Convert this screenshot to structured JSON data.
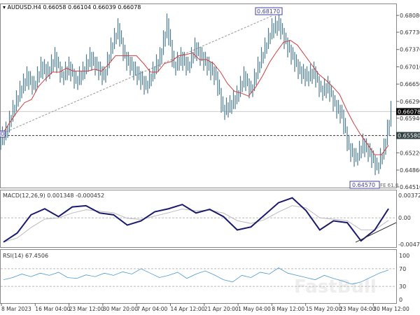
{
  "header": {
    "symbol": "AUDUSD.H4",
    "ohlc": "0.66058 0.66104 0.66039 0.66078"
  },
  "chart_data": [
    {
      "type": "candlestick",
      "title": "AUDUSD.H4 0.66058 0.66104 0.66039 0.66078",
      "ylim": [
        0.6451,
        0.6808
      ],
      "y_ticks": [
        "0.68080",
        "0.67730",
        "0.67370",
        "0.67010",
        "0.66650",
        "0.66290",
        "0.65940",
        "0.65220",
        "0.64860",
        "0.64510"
      ],
      "y_tick_values": [
        0.6808,
        0.6773,
        0.6737,
        0.6701,
        0.6665,
        0.6629,
        0.6594,
        0.6522,
        0.6486,
        0.6451
      ],
      "current_price": "0.66078",
      "current_price_value": 0.66078,
      "level_line": "0.65580",
      "level_value": 0.6558,
      "annotations": {
        "high": "0.68170",
        "low": "0.64570",
        "fib": "FE 61.8",
        "left": "0"
      },
      "closes": [
        0.6565,
        0.661,
        0.665,
        0.668,
        0.666,
        0.67,
        0.669,
        0.672,
        0.668,
        0.67,
        0.667,
        0.669,
        0.672,
        0.67,
        0.668,
        0.674,
        0.678,
        0.672,
        0.67,
        0.668,
        0.666,
        0.669,
        0.672,
        0.679,
        0.67,
        0.672,
        0.67,
        0.674,
        0.672,
        0.67,
        0.668,
        0.661,
        0.662,
        0.664,
        0.668,
        0.665,
        0.67,
        0.674,
        0.678,
        0.679,
        0.675,
        0.672,
        0.669,
        0.668,
        0.669,
        0.665,
        0.666,
        0.662,
        0.66,
        0.653,
        0.651,
        0.654,
        0.652,
        0.649,
        0.653,
        0.6608
      ],
      "colors": {
        "candles": "#4a7a8c",
        "ma": "#d04040"
      }
    },
    {
      "type": "line",
      "title": "MACD(12,26,9) 0.001348 -0.000452",
      "ylim": [
        -0.004716,
        0.003722
      ],
      "y_ticks": [
        "0.003722",
        "0.00",
        "-0.004716"
      ],
      "values": [
        -0.004,
        -0.0025,
        0.0005,
        0.0015,
        0.0002,
        0.0018,
        0.002,
        0.0008,
        0.0005,
        -0.0012,
        -0.0005,
        0.001,
        0.0015,
        0.0022,
        0.0008,
        0.0014,
        0.0002,
        -0.002,
        -0.0015,
        0.0005,
        0.0025,
        0.0033,
        0.0012,
        -0.002,
        -0.0005,
        -0.0008,
        -0.0038,
        -0.002,
        0.0015
      ],
      "colors": {
        "macd": "#1a1a6e",
        "signal": "#bbbbbb"
      }
    },
    {
      "type": "line",
      "title": "RSI(14) 67.4506",
      "ylim": [
        0,
        100
      ],
      "y_ticks": [
        "100",
        "70",
        "30",
        "0"
      ],
      "levels": [
        70,
        30
      ],
      "values": [
        45,
        50,
        58,
        52,
        60,
        55,
        62,
        50,
        48,
        56,
        52,
        60,
        55,
        63,
        58,
        70,
        60,
        50,
        55,
        62,
        48,
        58,
        65,
        56,
        45,
        40,
        55,
        50,
        62,
        58,
        72,
        60,
        55,
        50,
        45,
        55,
        48,
        42,
        35,
        40,
        50,
        60,
        67
      ],
      "colors": {
        "rsi": "#4a9ad0"
      }
    }
  ],
  "x_ticks": [
    "8 Mar 2023",
    "16 Mar 04:00",
    "23 Mar 12:00",
    "30 Mar 20:00",
    "7 Apr 04:00",
    "14 Apr 12:00",
    "21 Apr 20:00",
    "1 May 04:00",
    "8 May 12:00",
    "15 May 20:00",
    "23 May 04:00",
    "30 May 12:00"
  ],
  "watermark": "FastBull"
}
